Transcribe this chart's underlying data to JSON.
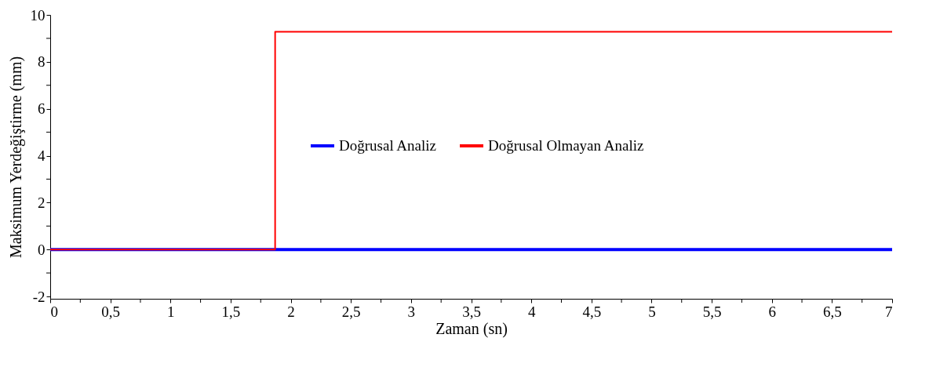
{
  "chart_data": {
    "type": "line",
    "xlabel": "Zaman (sn)",
    "ylabel": "Maksimum Yerdeğiştirme (mm)",
    "xlim": [
      0,
      7
    ],
    "ylim": [
      -2.1,
      10
    ],
    "xticks": [
      0,
      {
        "value": 0.25,
        "label": null
      },
      {
        "value": 0.5,
        "label": "0,5"
      },
      {
        "value": 0.75,
        "label": null
      },
      1,
      {
        "value": 1.25,
        "label": null
      },
      {
        "value": 1.5,
        "label": "1,5"
      },
      {
        "value": 1.75,
        "label": null
      },
      2,
      {
        "value": 2.25,
        "label": null
      },
      {
        "value": 2.5,
        "label": "2,5"
      },
      {
        "value": 2.75,
        "label": null
      },
      3,
      {
        "value": 3.25,
        "label": null
      },
      {
        "value": 3.5,
        "label": "3,5"
      },
      {
        "value": 3.75,
        "label": null
      },
      4,
      {
        "value": 4.25,
        "label": null
      },
      {
        "value": 4.5,
        "label": "4,5"
      },
      {
        "value": 4.75,
        "label": null
      },
      5,
      {
        "value": 5.25,
        "label": null
      },
      {
        "value": 5.5,
        "label": "5,5"
      },
      {
        "value": 5.75,
        "label": null
      },
      6,
      {
        "value": 6.25,
        "label": null
      },
      {
        "value": 6.5,
        "label": "6,5"
      },
      {
        "value": 6.75,
        "label": null
      },
      7
    ],
    "yticks": [
      -2,
      {
        "value": -1,
        "label": null
      },
      0,
      {
        "value": 1,
        "label": null
      },
      2,
      {
        "value": 3,
        "label": null
      },
      4,
      {
        "value": 5,
        "label": null
      },
      6,
      {
        "value": 7,
        "label": null
      },
      8,
      {
        "value": 9,
        "label": null
      },
      10
    ],
    "grid": false,
    "legend": "right",
    "marker": "none",
    "line_style": "solid",
    "series": [
      {
        "name": "Doğrusal Analiz",
        "color": "#0000ff",
        "x": [
          0,
          7
        ],
        "values": [
          0,
          0
        ]
      },
      {
        "name": "Doğrusal Olmayan Analiz",
        "color": "#ff0000",
        "x": [
          0,
          1.87,
          1.87,
          7
        ],
        "values": [
          0,
          0,
          9.28,
          9.28
        ]
      }
    ]
  }
}
